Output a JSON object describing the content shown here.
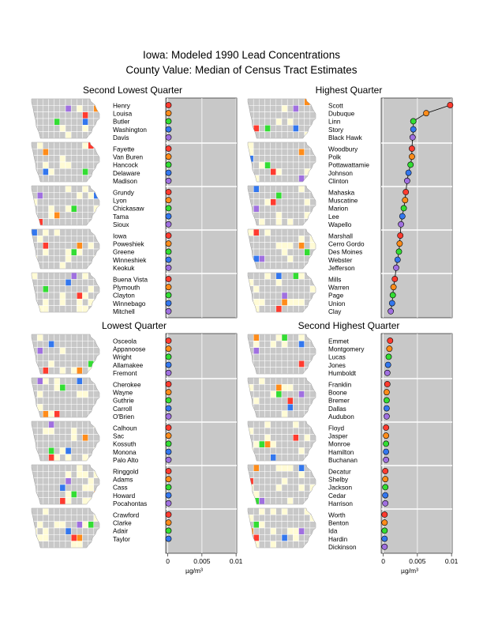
{
  "page": {
    "title": "Iowa: Modeled 1990 Lead Concentrations",
    "subtitle": "County Value: Median of Census Tract Estimates"
  },
  "colors": {
    "panel_bg": "#c8c8c8",
    "map_bg": "#c8c8c8",
    "grid": "#ffffff",
    "county_fill": "#fffbd5",
    "rank_colors": [
      "#ff3b2f",
      "#ff8c1a",
      "#33dd33",
      "#3377ee",
      "#a070e0"
    ]
  },
  "axis": {
    "ticks": [
      "0",
      "0.005",
      "0.01"
    ],
    "tick_values": [
      0,
      0.005,
      0.01
    ],
    "xlim": [
      -0.0003,
      0.0101
    ],
    "unit_label": "µg/m³"
  },
  "chart_data": [
    {
      "type": "scatter",
      "title": "Second Lowest Quarter",
      "connected": false,
      "groups": [
        {
          "counties": [
            "Henry",
            "Louisa",
            "Butler",
            "Washington",
            "Davis"
          ],
          "values": [
            0.0001,
            0.0001,
            0.0001,
            0.0001,
            0.0001
          ]
        },
        {
          "counties": [
            "Fayette",
            "Van Buren",
            "Hancock",
            "Delaware",
            "Madison"
          ],
          "values": [
            0.0001,
            0.0001,
            0.0001,
            0.0001,
            0.0001
          ]
        },
        {
          "counties": [
            "Grundy",
            "Lyon",
            "Chickasaw",
            "Tama",
            "Sioux"
          ],
          "values": [
            0.0001,
            0.0001,
            0.0001,
            0.0001,
            0.0001
          ]
        },
        {
          "counties": [
            "Iowa",
            "Poweshiek",
            "Greene",
            "Winneshiek",
            "Keokuk"
          ],
          "values": [
            0.0001,
            0.0001,
            0.0001,
            0.0001,
            0.0001
          ]
        },
        {
          "counties": [
            "Buena Vista",
            "Plymouth",
            "Clayton",
            "Winnebago",
            "Mitchell"
          ],
          "values": [
            0.0001,
            0.0001,
            0.0001,
            0.0001,
            0.0001
          ]
        }
      ]
    },
    {
      "type": "scatter",
      "title": "Highest Quarter",
      "connected": true,
      "groups": [
        {
          "counties": [
            "Scott",
            "Dubuque",
            "Linn",
            "Story",
            "Black Hawk"
          ],
          "values": [
            0.0098,
            0.0063,
            0.0044,
            0.0044,
            0.0043
          ]
        },
        {
          "counties": [
            "Woodbury",
            "Polk",
            "Pottawattamie",
            "Johnson",
            "Clinton"
          ],
          "values": [
            0.0042,
            0.0042,
            0.004,
            0.0037,
            0.0035
          ]
        },
        {
          "counties": [
            "Mahaska",
            "Muscatine",
            "Marion",
            "Lee",
            "Wapello"
          ],
          "values": [
            0.0033,
            0.0032,
            0.003,
            0.0028,
            0.0026
          ]
        },
        {
          "counties": [
            "Marshall",
            "Cerro Gordo",
            "Des Moines",
            "Webster",
            "Jefferson"
          ],
          "values": [
            0.0025,
            0.0024,
            0.0023,
            0.0021,
            0.0019
          ]
        },
        {
          "counties": [
            "Mills",
            "Warren",
            "Page",
            "Union",
            "Clay"
          ],
          "values": [
            0.0017,
            0.0015,
            0.0014,
            0.0013,
            0.0011
          ]
        }
      ]
    },
    {
      "type": "scatter",
      "title": "Lowest Quarter",
      "connected": false,
      "groups": [
        {
          "counties": [
            "Osceola",
            "Appanoose",
            "Wright",
            "Allamakee",
            "Fremont"
          ],
          "values": [
            0.0001,
            0.0001,
            0.0001,
            0.0001,
            0.0001
          ]
        },
        {
          "counties": [
            "Cherokee",
            "Wayne",
            "Guthrie",
            "Carroll",
            "O'Brien"
          ],
          "values": [
            0.0001,
            0.0001,
            0.0001,
            0.0001,
            0.0001
          ]
        },
        {
          "counties": [
            "Calhoun",
            "Sac",
            "Kossuth",
            "Monona",
            "Palo Alto"
          ],
          "values": [
            0.0001,
            0.0001,
            0.0001,
            0.0001,
            0.0001
          ]
        },
        {
          "counties": [
            "Ringgold",
            "Adams",
            "Cass",
            "Howard",
            "Pocahontas"
          ],
          "values": [
            0.0001,
            0.0001,
            0.0001,
            0.0001,
            0.0001
          ]
        },
        {
          "counties": [
            "Crawford",
            "Clarke",
            "Adair",
            "Taylor"
          ],
          "values": [
            0.0001,
            0.0001,
            0.0001,
            0.0001
          ]
        }
      ]
    },
    {
      "type": "scatter",
      "title": "Second Highest Quarter",
      "connected": false,
      "groups": [
        {
          "counties": [
            "Emmet",
            "Montgomery",
            "Lucas",
            "Jones",
            "Humboldt"
          ],
          "values": [
            0.001,
            0.0009,
            0.0008,
            0.0007,
            0.0006
          ]
        },
        {
          "counties": [
            "Franklin",
            "Boone",
            "Bremer",
            "Dallas",
            "Audubon"
          ],
          "values": [
            0.0006,
            0.0005,
            0.0005,
            0.0005,
            0.0005
          ]
        },
        {
          "counties": [
            "Floyd",
            "Jasper",
            "Monroe",
            "Hamilton",
            "Buchanan"
          ],
          "values": [
            0.0004,
            0.0004,
            0.0004,
            0.0004,
            0.0004
          ]
        },
        {
          "counties": [
            "Decatur",
            "Shelby",
            "Jackson",
            "Cedar",
            "Harrison"
          ],
          "values": [
            0.0003,
            0.0003,
            0.0003,
            0.0003,
            0.0003
          ]
        },
        {
          "counties": [
            "Worth",
            "Benton",
            "Ida",
            "Hardin",
            "Dickinson"
          ],
          "values": [
            0.0002,
            0.0002,
            0.0002,
            0.0002,
            0.0002
          ]
        }
      ]
    }
  ]
}
